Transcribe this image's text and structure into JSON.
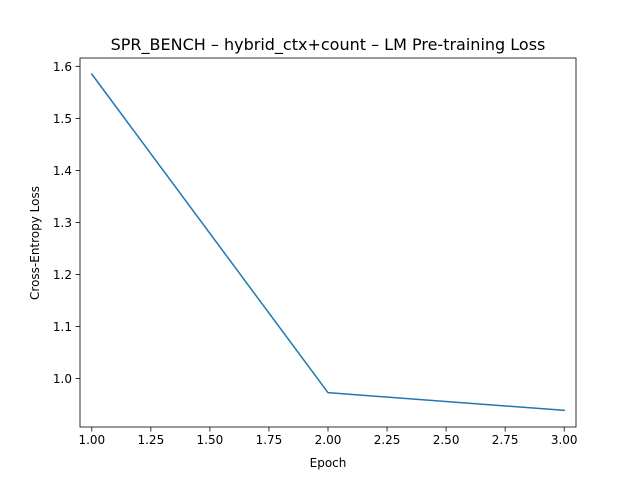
{
  "chart_data": {
    "type": "line",
    "title": "SPR_BENCH – hybrid_ctx+count – LM Pre-training Loss",
    "xlabel": "Epoch",
    "ylabel": "Cross-Entropy Loss",
    "x": [
      1.0,
      2.0,
      3.0
    ],
    "series": [
      {
        "values": [
          1.585,
          0.973,
          0.939
        ],
        "color": "#1f77b4"
      }
    ],
    "xlim": [
      0.95,
      3.05
    ],
    "ylim": [
      0.907,
      1.616
    ],
    "xticks": [
      "1.00",
      "1.25",
      "1.50",
      "1.75",
      "2.00",
      "2.25",
      "2.50",
      "2.75",
      "3.00"
    ],
    "yticks": [
      "1.0",
      "1.1",
      "1.2",
      "1.3",
      "1.4",
      "1.5",
      "1.6"
    ],
    "grid": false,
    "legend": "none"
  }
}
